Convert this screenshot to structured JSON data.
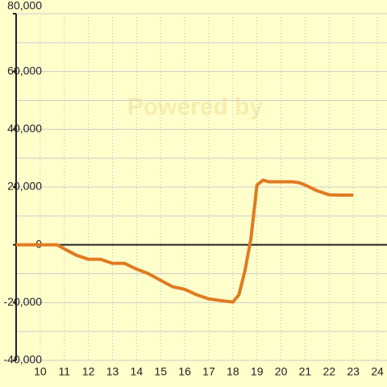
{
  "chart_data": {
    "type": "line",
    "watermark": "Powered by",
    "x": [
      9,
      9.5,
      10,
      10.5,
      10.7,
      11,
      11.5,
      12,
      12.5,
      13,
      13.5,
      14,
      14.5,
      15,
      15.5,
      16,
      16.5,
      17,
      17.5,
      18,
      18.25,
      18.5,
      18.75,
      19,
      19.25,
      19.5,
      20,
      20.5,
      20.75,
      21,
      21.5,
      22,
      22.5,
      23
    ],
    "series": [
      {
        "color": "#e07b20",
        "values": [
          0,
          0,
          0,
          0,
          0,
          -1400,
          -3600,
          -5000,
          -5000,
          -6400,
          -6400,
          -8400,
          -10000,
          -12300,
          -14500,
          -15400,
          -17300,
          -18700,
          -19300,
          -19800,
          -17300,
          -9000,
          2200,
          20700,
          22400,
          21800,
          21800,
          21800,
          21500,
          20700,
          18700,
          17300,
          17200,
          17200
        ]
      }
    ],
    "xlim": [
      9,
      24.4
    ],
    "ylim": [
      -40000,
      80000
    ],
    "xticks": [
      10,
      11,
      12,
      13,
      14,
      15,
      16,
      17,
      18,
      19,
      20,
      21,
      22,
      23,
      24
    ],
    "yticks": [
      {
        "value": -40000,
        "label": "-40,000"
      },
      {
        "value": -20000,
        "label": "-20,000"
      },
      0,
      {
        "value": 20000,
        "label": "20,000"
      },
      {
        "value": 40000,
        "label": "40,000"
      },
      {
        "value": 60000,
        "label": "60,000"
      },
      {
        "value": 80000,
        "label": "80,000"
      }
    ],
    "minor_yticks": [
      -30000,
      -10000,
      10000,
      30000,
      50000,
      70000
    ],
    "grid": true
  }
}
